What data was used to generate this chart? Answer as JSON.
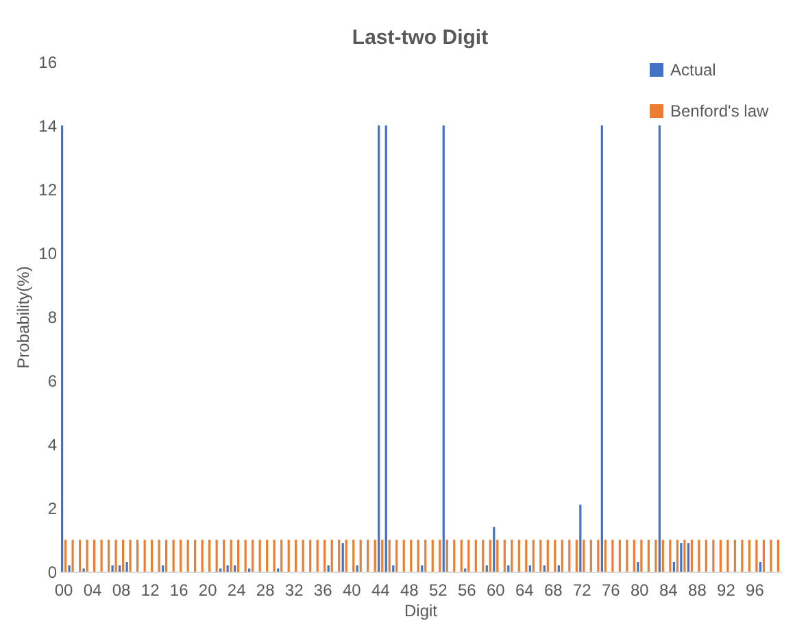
{
  "chart_data": {
    "type": "bar",
    "title": "Last-two Digit",
    "xlabel": "Digit",
    "ylabel": "Probability(%)",
    "categories": [
      "00",
      null,
      null,
      null,
      "04",
      null,
      null,
      null,
      "08",
      null,
      null,
      null,
      "12",
      null,
      null,
      null,
      "16",
      null,
      null,
      null,
      "20",
      null,
      null,
      null,
      "24",
      null,
      null,
      null,
      "28",
      null,
      null,
      null,
      "32",
      null,
      null,
      null,
      "36",
      null,
      null,
      null,
      "40",
      null,
      null,
      null,
      "44",
      null,
      null,
      null,
      "48",
      null,
      null,
      null,
      "52",
      null,
      null,
      null,
      "56",
      null,
      null,
      null,
      "60",
      null,
      null,
      null,
      "64",
      null,
      null,
      null,
      "68",
      null,
      null,
      null,
      "72",
      null,
      null,
      null,
      "76",
      null,
      null,
      null,
      "80",
      null,
      null,
      null,
      "84",
      null,
      null,
      null,
      "88",
      null,
      null,
      null,
      "92",
      null,
      null,
      null,
      "96",
      null,
      null,
      null
    ],
    "series": [
      {
        "name": "Actual",
        "color": "#4472c4",
        "values": [
          14,
          0.2,
          0,
          0.1,
          0,
          0,
          0,
          0.2,
          0.2,
          0.3,
          0,
          0,
          0,
          0,
          0.2,
          0,
          0,
          0,
          0,
          0,
          0,
          0,
          0.1,
          0.2,
          0.2,
          0,
          0.1,
          0,
          0,
          0,
          0.1,
          0,
          0,
          0,
          0,
          0,
          0,
          0.2,
          0,
          0.9,
          0,
          0.2,
          0,
          0,
          14,
          14,
          0.2,
          0,
          0,
          0,
          0.2,
          0,
          0,
          14,
          0,
          0,
          0.1,
          0,
          0,
          0.2,
          1.4,
          0,
          0.2,
          0,
          0,
          0.2,
          0,
          0.2,
          0,
          0.2,
          0,
          0,
          2.1,
          0,
          0,
          14,
          0,
          0,
          0,
          0,
          0.3,
          0,
          0,
          14,
          0,
          0.3,
          0.9,
          0.9,
          0,
          0,
          0,
          0,
          0,
          0,
          0,
          0,
          0,
          0.3,
          0,
          0
        ]
      },
      {
        "name": "Benford's law",
        "color": "#ed7d31",
        "values": [
          1,
          1,
          1,
          1,
          1,
          1,
          1,
          1,
          1,
          1,
          1,
          1,
          1,
          1,
          1,
          1,
          1,
          1,
          1,
          1,
          1,
          1,
          1,
          1,
          1,
          1,
          1,
          1,
          1,
          1,
          1,
          1,
          1,
          1,
          1,
          1,
          1,
          1,
          1,
          1,
          1,
          1,
          1,
          1,
          1,
          1,
          1,
          1,
          1,
          1,
          1,
          1,
          1,
          1,
          1,
          1,
          1,
          1,
          1,
          1,
          1,
          1,
          1,
          1,
          1,
          1,
          1,
          1,
          1,
          1,
          1,
          1,
          1,
          1,
          1,
          1,
          1,
          1,
          1,
          1,
          1,
          1,
          1,
          1,
          1,
          1,
          1,
          1,
          1,
          1,
          1,
          1,
          1,
          1,
          1,
          1,
          1,
          1,
          1,
          1
        ]
      }
    ],
    "ylim": [
      0,
      16
    ],
    "yticks": [
      0,
      2,
      4,
      6,
      8,
      10,
      12,
      14,
      16
    ],
    "legend": "top right"
  }
}
